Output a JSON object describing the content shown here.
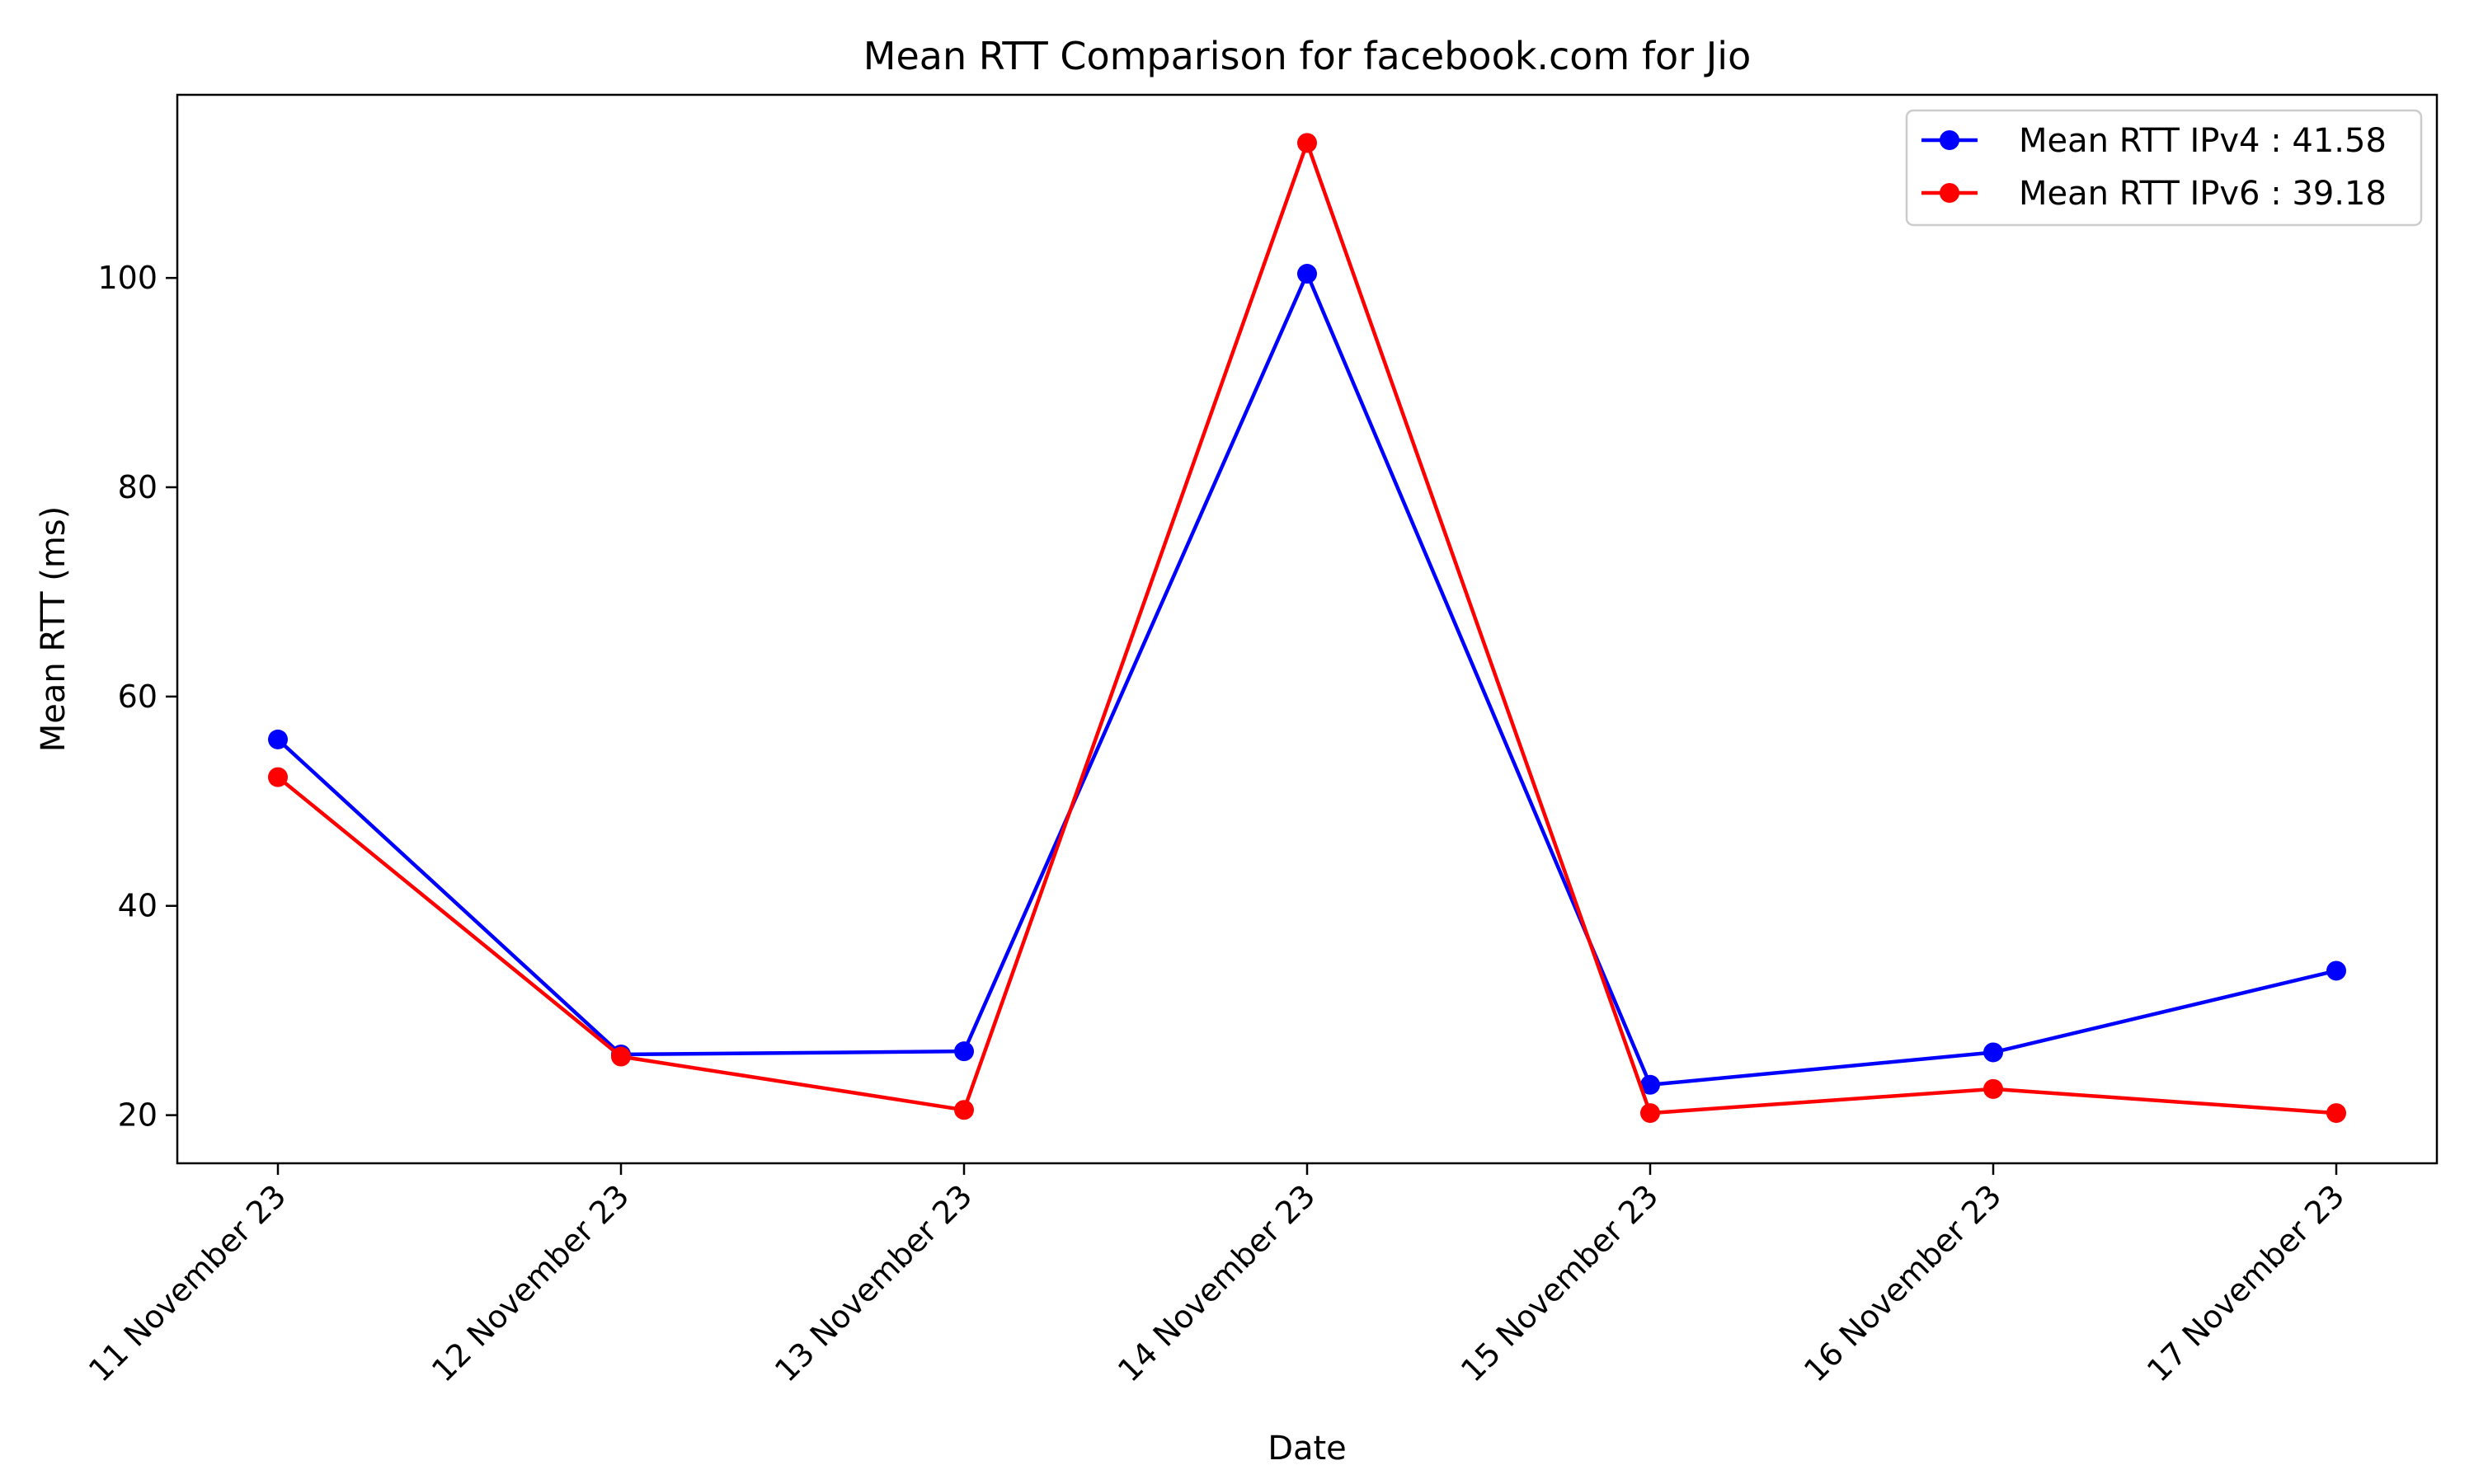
{
  "chart_data": {
    "type": "line",
    "title": "Mean RTT Comparison for facebook.com for Jio",
    "xlabel": "Date",
    "ylabel": "Mean RTT (ms)",
    "categories": [
      "11 November 23",
      "12 November 23",
      "13 November 23",
      "14 November 23",
      "15 November 23",
      "16 November 23",
      "17 November 23"
    ],
    "series": [
      {
        "name": "Mean RTT IPv4 : 41.58",
        "color": "#0000ff",
        "values": [
          55.9,
          25.8,
          26.1,
          100.4,
          22.9,
          26.0,
          33.8
        ]
      },
      {
        "name": "Mean RTT IPv6 : 39.18",
        "color": "#ff0000",
        "values": [
          52.3,
          25.6,
          20.5,
          112.9,
          20.2,
          22.5,
          20.2
        ]
      }
    ],
    "yticks": [
      20,
      40,
      60,
      80,
      100
    ],
    "ylim": [
      15.4,
      117.5
    ],
    "grid": false,
    "legend": "top-right"
  }
}
